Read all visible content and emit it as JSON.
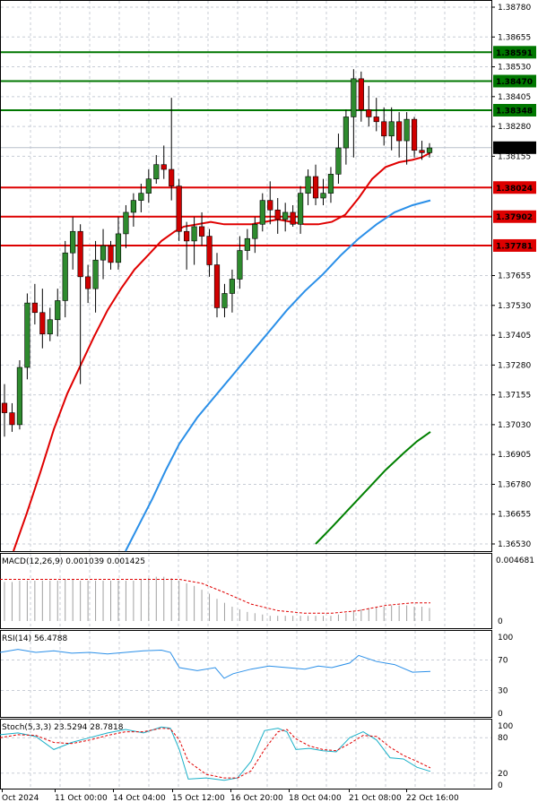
{
  "chart_data": {
    "type": "candlestick",
    "symbol": "USDCAD",
    "x_ticks": [
      "Oct 2024",
      "11 Oct 00:00",
      "14 Oct 04:00",
      "15 Oct 12:00",
      "16 Oct 20:00",
      "18 Oct 04:00",
      "21 Oct 08:00",
      "22 Oct 16:00"
    ],
    "price_ticks": [
      1.3878,
      1.38655,
      1.3853,
      1.38405,
      1.3828,
      1.38155,
      1.37655,
      1.3753,
      1.37405,
      1.3728,
      1.37155,
      1.3703,
      1.36905,
      1.3678,
      1.36655,
      1.3653
    ],
    "price_ticks_text": [
      "1.38780",
      "1.38655",
      "1.38530",
      "1.38405",
      "1.38280",
      "1.38155",
      "1.37655",
      "1.37530",
      "1.37405",
      "1.37280",
      "1.37155",
      "1.37030",
      "1.36905",
      "1.36780",
      "1.36655",
      "1.36530"
    ],
    "ylim": [
      1.365,
      1.3881
    ],
    "current_price": 1.38191,
    "current_price_label": "1.38191",
    "levels": [
      {
        "price": 1.38591,
        "label": "1.38591",
        "kind": "resistance",
        "color": "#007700"
      },
      {
        "price": 1.3847,
        "label": "1.38470",
        "kind": "resistance",
        "color": "#007700"
      },
      {
        "price": 1.38348,
        "label": "1.38348",
        "kind": "resistance",
        "color": "#007700"
      },
      {
        "price": 1.38024,
        "label": "1.38024",
        "kind": "support",
        "color": "#dd0000"
      },
      {
        "price": 1.37902,
        "label": "1.37902",
        "kind": "support",
        "color": "#dd0000"
      },
      {
        "price": 1.37781,
        "label": "1.37781",
        "kind": "support",
        "color": "#dd0000"
      }
    ],
    "candles": [
      [
        1.3712,
        1.372,
        1.3698,
        1.3708
      ],
      [
        1.3708,
        1.3712,
        1.37,
        1.3703
      ],
      [
        1.3703,
        1.373,
        1.3701,
        1.3727
      ],
      [
        1.3727,
        1.3758,
        1.3722,
        1.3754
      ],
      [
        1.3754,
        1.3762,
        1.3745,
        1.375
      ],
      [
        1.375,
        1.376,
        1.3735,
        1.3741
      ],
      [
        1.3741,
        1.3752,
        1.3738,
        1.3747
      ],
      [
        1.3747,
        1.376,
        1.374,
        1.3755
      ],
      [
        1.3755,
        1.378,
        1.3748,
        1.3775
      ],
      [
        1.3775,
        1.379,
        1.3768,
        1.3784
      ],
      [
        1.3784,
        1.3787,
        1.372,
        1.3765
      ],
      [
        1.3765,
        1.377,
        1.3754,
        1.376
      ],
      [
        1.376,
        1.378,
        1.375,
        1.3772
      ],
      [
        1.3772,
        1.3785,
        1.3764,
        1.3778
      ],
      [
        1.3778,
        1.378,
        1.3768,
        1.3771
      ],
      [
        1.3771,
        1.379,
        1.3768,
        1.3783
      ],
      [
        1.3783,
        1.3795,
        1.3777,
        1.3792
      ],
      [
        1.3792,
        1.38,
        1.3786,
        1.3797
      ],
      [
        1.3797,
        1.3804,
        1.3792,
        1.38
      ],
      [
        1.38,
        1.381,
        1.3796,
        1.3806
      ],
      [
        1.3806,
        1.3816,
        1.3804,
        1.3812
      ],
      [
        1.3812,
        1.382,
        1.3806,
        1.381
      ],
      [
        1.381,
        1.384,
        1.3797,
        1.3803
      ],
      [
        1.3803,
        1.3806,
        1.378,
        1.3784
      ],
      [
        1.3784,
        1.3788,
        1.3768,
        1.378
      ],
      [
        1.378,
        1.379,
        1.377,
        1.3786
      ],
      [
        1.3786,
        1.3792,
        1.3778,
        1.3782
      ],
      [
        1.3782,
        1.3785,
        1.3765,
        1.377
      ],
      [
        1.377,
        1.3775,
        1.3748,
        1.3752
      ],
      [
        1.3752,
        1.3762,
        1.3748,
        1.3758
      ],
      [
        1.3758,
        1.3768,
        1.375,
        1.3764
      ],
      [
        1.3764,
        1.3782,
        1.376,
        1.3776
      ],
      [
        1.3776,
        1.3785,
        1.3772,
        1.3781
      ],
      [
        1.3781,
        1.379,
        1.3775,
        1.3787
      ],
      [
        1.3787,
        1.38,
        1.3784,
        1.3797
      ],
      [
        1.3797,
        1.3805,
        1.3787,
        1.3793
      ],
      [
        1.3793,
        1.3798,
        1.3783,
        1.3789
      ],
      [
        1.3789,
        1.3796,
        1.3784,
        1.3792
      ],
      [
        1.3792,
        1.3795,
        1.3786,
        1.3787
      ],
      [
        1.3787,
        1.3803,
        1.3783,
        1.38
      ],
      [
        1.38,
        1.381,
        1.3795,
        1.3807
      ],
      [
        1.3807,
        1.3812,
        1.3795,
        1.3798
      ],
      [
        1.3798,
        1.3806,
        1.3795,
        1.38
      ],
      [
        1.38,
        1.3811,
        1.3796,
        1.3808
      ],
      [
        1.3808,
        1.3825,
        1.3804,
        1.3819
      ],
      [
        1.3819,
        1.3835,
        1.3812,
        1.3832
      ],
      [
        1.3832,
        1.3852,
        1.3815,
        1.3848
      ],
      [
        1.3848,
        1.3851,
        1.383,
        1.3835
      ],
      [
        1.3835,
        1.3845,
        1.3828,
        1.3832
      ],
      [
        1.3832,
        1.384,
        1.3826,
        1.383
      ],
      [
        1.383,
        1.3836,
        1.382,
        1.3824
      ],
      [
        1.3824,
        1.3836,
        1.3818,
        1.383
      ],
      [
        1.383,
        1.3834,
        1.3815,
        1.3822
      ],
      [
        1.3822,
        1.3834,
        1.3812,
        1.3831
      ],
      [
        1.3831,
        1.3832,
        1.3815,
        1.3818
      ],
      [
        1.3818,
        1.3822,
        1.3814,
        1.3817
      ],
      [
        1.3817,
        1.3821,
        1.3815,
        1.3819
      ]
    ],
    "ma_fast_color": "#e00000",
    "ma_mid_color": "#2a8fe8",
    "ma_slow_color": "#008000",
    "ma_fast": [
      [
        15,
        1.365
      ],
      [
        30,
        1.3666
      ],
      [
        45,
        1.3683
      ],
      [
        60,
        1.3701
      ],
      [
        75,
        1.3716
      ],
      [
        90,
        1.3728
      ],
      [
        105,
        1.374
      ],
      [
        120,
        1.3751
      ],
      [
        135,
        1.376
      ],
      [
        150,
        1.3768
      ],
      [
        165,
        1.3774
      ],
      [
        180,
        1.378
      ],
      [
        195,
        1.3784
      ],
      [
        205,
        1.3786
      ],
      [
        220,
        1.3787
      ],
      [
        235,
        1.3788
      ],
      [
        250,
        1.3787
      ],
      [
        265,
        1.3787
      ],
      [
        280,
        1.3787
      ],
      [
        295,
        1.3788
      ],
      [
        310,
        1.3789
      ],
      [
        325,
        1.3788
      ],
      [
        340,
        1.3787
      ],
      [
        355,
        1.3787
      ],
      [
        370,
        1.3788
      ],
      [
        385,
        1.3791
      ],
      [
        400,
        1.3798
      ],
      [
        415,
        1.3806
      ],
      [
        430,
        1.3811
      ],
      [
        445,
        1.3813
      ],
      [
        460,
        1.3814
      ],
      [
        470,
        1.3815
      ],
      [
        480,
        1.3817
      ]
    ],
    "ma_mid": [
      [
        140,
        1.365
      ],
      [
        155,
        1.3661
      ],
      [
        170,
        1.3672
      ],
      [
        185,
        1.3684
      ],
      [
        200,
        1.3695
      ],
      [
        220,
        1.3706
      ],
      [
        240,
        1.3715
      ],
      [
        260,
        1.3724
      ],
      [
        280,
        1.3733
      ],
      [
        300,
        1.3742
      ],
      [
        320,
        1.3751
      ],
      [
        340,
        1.3759
      ],
      [
        360,
        1.3766
      ],
      [
        380,
        1.3774
      ],
      [
        400,
        1.3781
      ],
      [
        420,
        1.3787
      ],
      [
        440,
        1.3792
      ],
      [
        460,
        1.3795
      ],
      [
        480,
        1.3797
      ]
    ],
    "ma_slow": [
      [
        352,
        1.3653
      ],
      [
        370,
        1.366
      ],
      [
        390,
        1.3668
      ],
      [
        410,
        1.3676
      ],
      [
        430,
        1.3684
      ],
      [
        450,
        1.3691
      ],
      [
        465,
        1.3696
      ],
      [
        480,
        1.37
      ]
    ],
    "macd": {
      "label": "MACD(12,26,9) 0.001039 0.001425",
      "top_label": "0.004681",
      "zero_label": "0",
      "max": 0.004681,
      "histogram": [
        0.003,
        0.003,
        0.0031,
        0.0031,
        0.0031,
        0.0031,
        0.0031,
        0.0031,
        0.0032,
        0.0032,
        0.0031,
        0.0031,
        0.0031,
        0.0031,
        0.0031,
        0.0031,
        0.0031,
        0.0031,
        0.0032,
        0.0033,
        0.0034,
        0.0034,
        0.0033,
        0.0031,
        0.0029,
        0.0027,
        0.0024,
        0.0021,
        0.0017,
        0.0014,
        0.0011,
        0.0009,
        0.0007,
        0.0006,
        0.0005,
        0.0004,
        0.0004,
        0.0004,
        0.0004,
        0.0004,
        0.0004,
        0.0004,
        0.0004,
        0.0004,
        0.0005,
        0.0006,
        0.0008,
        0.0009,
        0.001,
        0.0011,
        0.0011,
        0.0012,
        0.0012,
        0.0012,
        0.0011,
        0.0011,
        0.001
      ],
      "signal": [
        [
          0,
          0.0032
        ],
        [
          40,
          0.0032
        ],
        [
          80,
          0.0032
        ],
        [
          120,
          0.0032
        ],
        [
          160,
          0.0032
        ],
        [
          200,
          0.0032
        ],
        [
          225,
          0.0029
        ],
        [
          250,
          0.0022
        ],
        [
          280,
          0.0013
        ],
        [
          310,
          0.0008
        ],
        [
          340,
          0.0006
        ],
        [
          370,
          0.0006
        ],
        [
          400,
          0.0008
        ],
        [
          430,
          0.0012
        ],
        [
          460,
          0.0014
        ],
        [
          480,
          0.0014
        ]
      ]
    },
    "rsi": {
      "label": "RSI(14) 56.4788",
      "levels": [
        100,
        70,
        30,
        0
      ],
      "line": [
        [
          0,
          80
        ],
        [
          20,
          84
        ],
        [
          40,
          80
        ],
        [
          60,
          82
        ],
        [
          80,
          79
        ],
        [
          100,
          80
        ],
        [
          120,
          78
        ],
        [
          140,
          80
        ],
        [
          160,
          82
        ],
        [
          180,
          83
        ],
        [
          190,
          80
        ],
        [
          200,
          60
        ],
        [
          220,
          56
        ],
        [
          240,
          60
        ],
        [
          250,
          46
        ],
        [
          260,
          52
        ],
        [
          280,
          58
        ],
        [
          300,
          62
        ],
        [
          320,
          60
        ],
        [
          340,
          58
        ],
        [
          355,
          62
        ],
        [
          370,
          60
        ],
        [
          390,
          66
        ],
        [
          400,
          76
        ],
        [
          420,
          68
        ],
        [
          440,
          64
        ],
        [
          460,
          54
        ],
        [
          480,
          55
        ]
      ]
    },
    "stoch": {
      "label": "Stoch(5,3,3) 23.5294 28.7818",
      "levels_text": [
        "100",
        "80",
        "20",
        "0"
      ],
      "levels": [
        100,
        80,
        20,
        0
      ],
      "k": [
        [
          0,
          85
        ],
        [
          20,
          88
        ],
        [
          40,
          82
        ],
        [
          60,
          60
        ],
        [
          80,
          72
        ],
        [
          100,
          80
        ],
        [
          120,
          88
        ],
        [
          140,
          94
        ],
        [
          160,
          88
        ],
        [
          180,
          98
        ],
        [
          190,
          96
        ],
        [
          200,
          60
        ],
        [
          210,
          10
        ],
        [
          230,
          12
        ],
        [
          250,
          8
        ],
        [
          265,
          12
        ],
        [
          280,
          40
        ],
        [
          295,
          92
        ],
        [
          310,
          96
        ],
        [
          320,
          90
        ],
        [
          330,
          60
        ],
        [
          345,
          62
        ],
        [
          360,
          58
        ],
        [
          375,
          56
        ],
        [
          390,
          80
        ],
        [
          405,
          90
        ],
        [
          420,
          76
        ],
        [
          435,
          46
        ],
        [
          450,
          44
        ],
        [
          465,
          30
        ],
        [
          480,
          23
        ]
      ],
      "d": [
        [
          0,
          80
        ],
        [
          20,
          85
        ],
        [
          40,
          84
        ],
        [
          60,
          72
        ],
        [
          80,
          70
        ],
        [
          100,
          76
        ],
        [
          120,
          84
        ],
        [
          140,
          90
        ],
        [
          160,
          90
        ],
        [
          180,
          96
        ],
        [
          190,
          95
        ],
        [
          200,
          76
        ],
        [
          210,
          40
        ],
        [
          230,
          18
        ],
        [
          250,
          12
        ],
        [
          265,
          12
        ],
        [
          280,
          24
        ],
        [
          295,
          60
        ],
        [
          310,
          90
        ],
        [
          320,
          94
        ],
        [
          330,
          78
        ],
        [
          345,
          66
        ],
        [
          360,
          60
        ],
        [
          375,
          58
        ],
        [
          390,
          70
        ],
        [
          405,
          84
        ],
        [
          420,
          82
        ],
        [
          435,
          64
        ],
        [
          450,
          50
        ],
        [
          465,
          40
        ],
        [
          480,
          29
        ]
      ]
    }
  }
}
